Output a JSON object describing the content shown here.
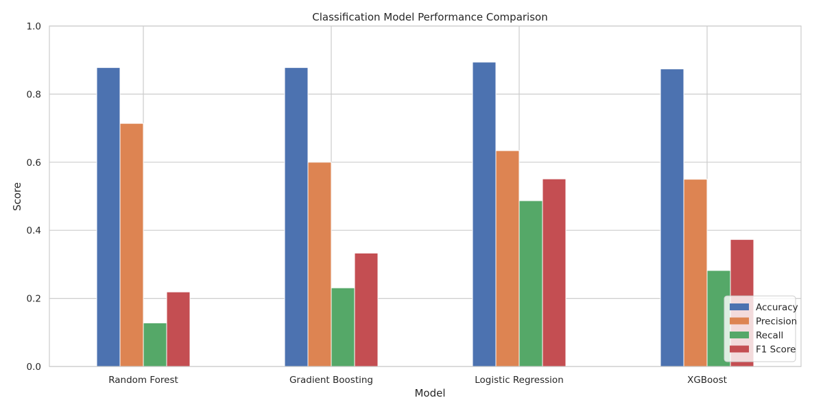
{
  "chart_data": {
    "type": "bar",
    "title": "Classification Model Performance Comparison",
    "xlabel": "Model",
    "ylabel": "Score",
    "ylim": [
      0,
      1
    ],
    "yticks": [
      "0.0",
      "0.2",
      "0.4",
      "0.6",
      "0.8",
      "1.0"
    ],
    "categories": [
      "Random Forest",
      "Gradient Boosting",
      "Logistic Regression",
      "XGBoost"
    ],
    "series": [
      {
        "name": "Accuracy",
        "color": "#4c72b0",
        "values": [
          0.878,
          0.878,
          0.894,
          0.874
        ]
      },
      {
        "name": "Precision",
        "color": "#dd8452",
        "values": [
          0.714,
          0.6,
          0.634,
          0.55
        ]
      },
      {
        "name": "Recall",
        "color": "#55a868",
        "values": [
          0.128,
          0.231,
          0.487,
          0.282
        ]
      },
      {
        "name": "F1 Score",
        "color": "#c44e52",
        "values": [
          0.219,
          0.333,
          0.551,
          0.373
        ]
      }
    ],
    "grid": true,
    "legend_position": "lower-right"
  }
}
